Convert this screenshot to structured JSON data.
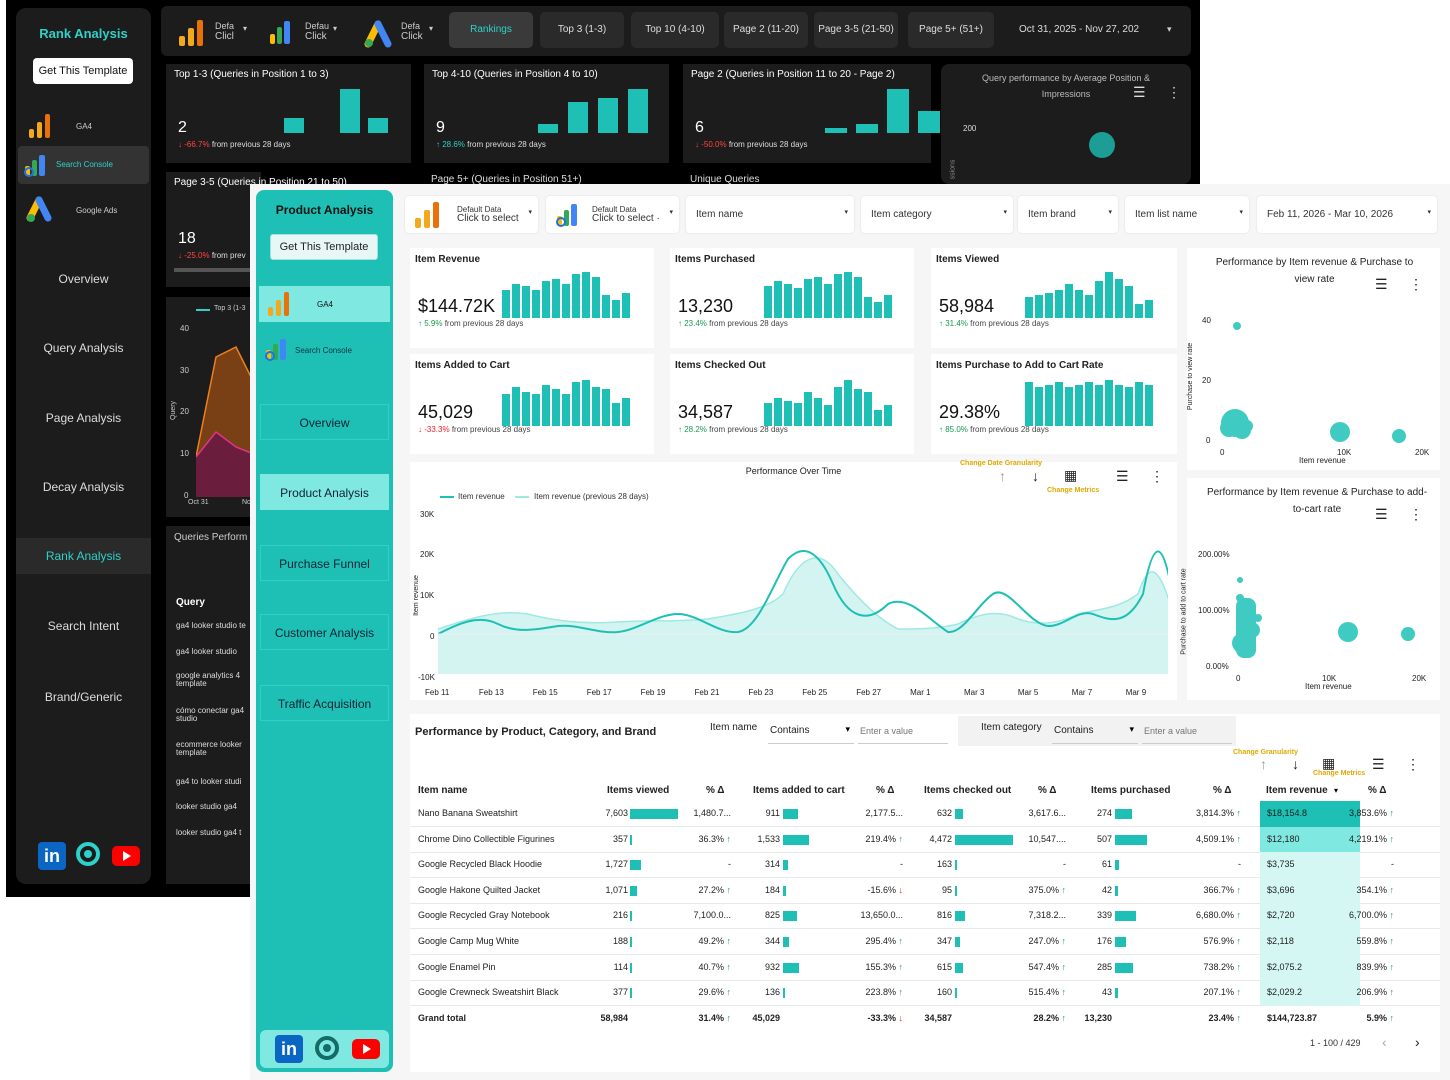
{
  "back": {
    "sidebar": {
      "title": "Rank Analysis",
      "template_button": "Get This Template",
      "sources": [
        {
          "label": "GA4"
        },
        {
          "label": "Search Console"
        },
        {
          "label": "Google Ads"
        }
      ],
      "nav": [
        "Overview",
        "Query Analysis",
        "Page Analysis",
        "Decay Analysis",
        "Rank Analysis",
        "Search Intent",
        "Brand/Generic"
      ]
    },
    "toolbar": {
      "selectors": [
        {
          "l1": "Defa",
          "l2": "Clicl"
        },
        {
          "l1": "Defau",
          "l2": "Click"
        },
        {
          "l1": "Defa",
          "l2": "Click"
        }
      ],
      "tabs": [
        "Rankings",
        "Top 3 (1-3)",
        "Top 10 (4-10)",
        "Page 2 (11-20)",
        "Page 3-5 (21-50)",
        "Page 5+ (51+)"
      ],
      "date": "Oct 31, 2025 - Nov 27, 202"
    },
    "cards": [
      {
        "title": "Top 1-3 (Queries in Position 1 to 3)",
        "value": "2",
        "change": "-66.7%",
        "suffix": "from previous 28 days",
        "dir": "down",
        "bars": [
          0,
          0,
          0.33,
          0,
          1.0,
          0.33
        ]
      },
      {
        "title": "Top 4-10 (Queries in Position 4 to 10)",
        "value": "9",
        "change": "28.6%",
        "suffix": "from previous 28 days",
        "dir": "up",
        "bars": [
          0,
          0,
          0.2,
          0.7,
          0.8,
          1.0
        ]
      },
      {
        "title": "Page 2 (Queries in Position 11 to 20 - Page 2)",
        "value": "6",
        "change": "-50.0%",
        "suffix": "from previous 28 days",
        "dir": "down",
        "bars": [
          0,
          0,
          0.12,
          0.2,
          1.0,
          0.5
        ]
      },
      {
        "title": "Page 3-5 (Queries in Position 21 to 50)",
        "value": "18",
        "change": "-25.0%",
        "suffix": "from prev",
        "dir": "down"
      },
      {
        "title": "Page 5+ (Queries in Position 51+)"
      },
      {
        "title": "Unique Queries"
      }
    ],
    "scatter": {
      "title": "Query performance by Average Position & Impressions",
      "ytick": "200",
      "ylabel": "ssions"
    },
    "area_chart": {
      "legend": "Top 3 (1-3",
      "yticks": [
        "40",
        "30",
        "20",
        "10",
        "0"
      ],
      "ylabel": "Query",
      "xticks": [
        "Oct 31",
        "Nov"
      ]
    },
    "queries": {
      "title": "Queries Perform",
      "header": "Query",
      "rows": [
        "ga4 looker studio te",
        "ga4 looker studio",
        "google analytics 4 template",
        "cómo conectar ga4 studio",
        "ecommerce looker template",
        "ga4 to looker studi",
        "looker studio ga4",
        "looker studio ga4 t"
      ]
    }
  },
  "front": {
    "sidebar": {
      "title": "Product Analysis",
      "template_button": "Get This Template",
      "sources": [
        {
          "label": "GA4"
        },
        {
          "label": "Search Console"
        }
      ],
      "nav": [
        "Overview",
        "Product Analysis",
        "Purchase Funnel",
        "Customer Analysis",
        "Traffic Acquisition"
      ]
    },
    "filters": {
      "data1": {
        "l1": "Default Data",
        "l2": "Click to select"
      },
      "data2": {
        "l1": "Default Data",
        "l2": "Click to select ·"
      },
      "item_name": "Item name",
      "item_category": "Item category",
      "item_brand": "Item brand",
      "item_list_name": "Item list name",
      "date": "Feb 11, 2026 - Mar 10, 2026"
    },
    "kpis": [
      {
        "title": "Item Revenue",
        "value": "$144.72K",
        "change": "5.9%",
        "dir": "up",
        "suffix": "from previous 28 days",
        "bars": [
          0.6,
          0.75,
          0.7,
          0.6,
          0.8,
          0.85,
          0.75,
          0.95,
          1.0,
          0.9,
          0.5,
          0.4,
          0.55
        ]
      },
      {
        "title": "Items Purchased",
        "value": "13,230",
        "change": "23.4%",
        "dir": "up",
        "suffix": "from previous 28 days",
        "bars": [
          0.7,
          0.8,
          0.75,
          0.65,
          0.85,
          0.9,
          0.75,
          0.95,
          1.0,
          0.9,
          0.45,
          0.35,
          0.5
        ]
      },
      {
        "title": "Items Viewed",
        "value": "58,984",
        "change": "31.4%",
        "dir": "up",
        "suffix": "from previous 28 days",
        "bars": [
          0.45,
          0.5,
          0.55,
          0.6,
          0.75,
          0.6,
          0.5,
          0.8,
          1.0,
          0.85,
          0.7,
          0.3,
          0.4
        ]
      },
      {
        "title": "Items Added to Cart",
        "value": "45,029",
        "change": "-33.3%",
        "dir": "down",
        "suffix": "from previous 28 days",
        "bars": [
          0.7,
          0.85,
          0.75,
          0.7,
          0.9,
          0.8,
          0.7,
          0.95,
          1.0,
          0.85,
          0.8,
          0.5,
          0.6
        ]
      },
      {
        "title": "Items Checked Out",
        "value": "34,587",
        "change": "28.2%",
        "dir": "up",
        "suffix": "from previous 28 days",
        "bars": [
          0.5,
          0.6,
          0.55,
          0.5,
          0.75,
          0.6,
          0.45,
          0.85,
          1.0,
          0.8,
          0.75,
          0.35,
          0.45
        ]
      },
      {
        "title": "Items Purchase to Add to Cart Rate",
        "value": "29.38%",
        "change": "85.0%",
        "dir": "up",
        "suffix": "from previous 28 days",
        "bars": [
          0.95,
          0.85,
          0.9,
          0.95,
          0.85,
          0.9,
          0.95,
          0.9,
          1.0,
          0.9,
          0.85,
          0.95,
          0.9
        ]
      }
    ],
    "perf_chart": {
      "title": "Performance Over Time",
      "legend": [
        "Item revenue",
        "Item revenue (previous 28 days)"
      ],
      "change_granularity": "Change Date Granularity",
      "change_metrics": "Change Metrics",
      "ylabel": "Item revenue",
      "yticks": [
        "30K",
        "20K",
        "10K",
        "0",
        "-10K"
      ],
      "xticks": [
        "Feb 11",
        "Feb 13",
        "Feb 15",
        "Feb 17",
        "Feb 19",
        "Feb 21",
        "Feb 23",
        "Feb 25",
        "Feb 27",
        "Mar 1",
        "Mar 3",
        "Mar 5",
        "Mar 7",
        "Mar 9"
      ]
    },
    "scatter1": {
      "title": "Performance by Item revenue & Purchase to view rate",
      "ylabel": "Purchase to view rate",
      "xlabel": "Item revenue",
      "yticks": [
        "40",
        "20",
        "0"
      ],
      "xticks": [
        "0",
        "10K",
        "20K"
      ]
    },
    "scatter2": {
      "title": "Performance by Item revenue & Purchase to add-to-cart rate",
      "ylabel": "Purchase to add to cart rate",
      "xlabel": "Item revenue",
      "yticks": [
        "200.00%",
        "100.00%",
        "0.00%"
      ],
      "xticks": [
        "0",
        "10K",
        "20K"
      ]
    },
    "table": {
      "title": "Performance by Product, Category, and Brand",
      "filter1": {
        "label": "Item name",
        "op": "Contains",
        "placeholder": "Enter a value"
      },
      "filter2": {
        "label": "Item category",
        "op": "Contains",
        "placeholder": "Enter a value"
      },
      "change_granularity": "Change Granularity",
      "change_metrics": "Change Metrics",
      "columns": [
        "Item name",
        "Items viewed",
        "% Δ",
        "Items added to cart",
        "% Δ",
        "Items checked out",
        "% Δ",
        "Items purchased",
        "% Δ",
        "Item revenue",
        "% Δ"
      ],
      "rows": [
        {
          "name": "Nano Banana Sweatshirt",
          "viewed": "7,603",
          "vw": 1.0,
          "d1": "1,480.7...",
          "added": "911",
          "aw": 0.59,
          "d2": "2,177.5...",
          "checked": "632",
          "cw": 0.14,
          "d3": "3,617.6...",
          "purch": "274",
          "pw": 0.54,
          "d4": "3,814.3%",
          "d4dir": "up",
          "rev": "$18,154.8",
          "d5": "3,853.6%",
          "d5dir": "up"
        },
        {
          "name": "Chrome Dino Collectible Figurines",
          "viewed": "357",
          "vw": 0.05,
          "d1": "36.3%",
          "d1dir": "up",
          "added": "1,533",
          "aw": 1.0,
          "d2": "219.4%",
          "d2dir": "up",
          "checked": "4,472",
          "cw": 1.0,
          "d3": "10,547....",
          "purch": "507",
          "pw": 1.0,
          "d4": "4,509.1%",
          "d4dir": "up",
          "rev": "$12,180",
          "d5": "4,219.1%",
          "d5dir": "up"
        },
        {
          "name": "Google Recycled Black Hoodie",
          "viewed": "1,727",
          "vw": 0.23,
          "d1": "-",
          "added": "314",
          "aw": 0.2,
          "d2": "-",
          "checked": "163",
          "cw": 0.04,
          "d3": "-",
          "purch": "61",
          "pw": 0.12,
          "d4": "-",
          "rev": "$3,735",
          "d5": "-"
        },
        {
          "name": "Google Hakone Quilted Jacket",
          "viewed": "1,071",
          "vw": 0.14,
          "d1": "27.2%",
          "d1dir": "up",
          "added": "184",
          "aw": 0.12,
          "d2": "-15.6%",
          "d2dir": "down",
          "checked": "95",
          "cw": 0.02,
          "d3": "375.0%",
          "d3dir": "up",
          "purch": "42",
          "pw": 0.08,
          "d4": "366.7%",
          "d4dir": "up",
          "rev": "$3,696",
          "d5": "354.1%",
          "d5dir": "up"
        },
        {
          "name": "Google Recycled Gray Notebook",
          "viewed": "216",
          "vw": 0.03,
          "d1": "7,100.0...",
          "added": "825",
          "aw": 0.54,
          "d2": "13,650.0...",
          "checked": "816",
          "cw": 0.18,
          "d3": "7,318.2...",
          "purch": "339",
          "pw": 0.67,
          "d4": "6,680.0%",
          "d4dir": "up",
          "rev": "$2,720",
          "d5": "6,700.0%",
          "d5dir": "up"
        },
        {
          "name": "Google Camp Mug White",
          "viewed": "188",
          "vw": 0.02,
          "d1": "49.2%",
          "d1dir": "up",
          "added": "344",
          "aw": 0.22,
          "d2": "295.4%",
          "d2dir": "up",
          "checked": "347",
          "cw": 0.08,
          "d3": "247.0%",
          "d3dir": "up",
          "purch": "176",
          "pw": 0.35,
          "d4": "576.9%",
          "d4dir": "up",
          "rev": "$2,118",
          "d5": "559.8%",
          "d5dir": "up"
        },
        {
          "name": "Google Enamel Pin",
          "viewed": "114",
          "vw": 0.02,
          "d1": "40.7%",
          "d1dir": "up",
          "added": "932",
          "aw": 0.61,
          "d2": "155.3%",
          "d2dir": "up",
          "checked": "615",
          "cw": 0.14,
          "d3": "547.4%",
          "d3dir": "up",
          "purch": "285",
          "pw": 0.56,
          "d4": "738.2%",
          "d4dir": "up",
          "rev": "$2,075.2",
          "d5": "839.9%",
          "d5dir": "up"
        },
        {
          "name": "Google Crewneck Sweatshirt Black",
          "viewed": "377",
          "vw": 0.05,
          "d1": "29.6%",
          "d1dir": "up",
          "added": "136",
          "aw": 0.09,
          "d2": "223.8%",
          "d2dir": "up",
          "checked": "160",
          "cw": 0.04,
          "d3": "515.4%",
          "d3dir": "up",
          "purch": "43",
          "pw": 0.08,
          "d4": "207.1%",
          "d4dir": "up",
          "rev": "$2,029.2",
          "d5": "206.9%",
          "d5dir": "up"
        }
      ],
      "total": {
        "name": "Grand total",
        "viewed": "58,984",
        "d1": "31.4%",
        "d1dir": "up",
        "added": "45,029",
        "d2": "-33.3%",
        "d2dir": "down",
        "checked": "34,587",
        "d3": "28.2%",
        "d3dir": "up",
        "purch": "13,230",
        "d4": "23.4%",
        "d4dir": "up",
        "rev": "$144,723.87",
        "d5": "5.9%",
        "d5dir": "up"
      },
      "pagination": "1 - 100 / 429"
    }
  },
  "colors": {
    "teal": "#1ec0b5",
    "teal_light": "#7fe9e1",
    "dark_bg": "#000000",
    "up": "#1a9b50",
    "down": "#e22222"
  }
}
